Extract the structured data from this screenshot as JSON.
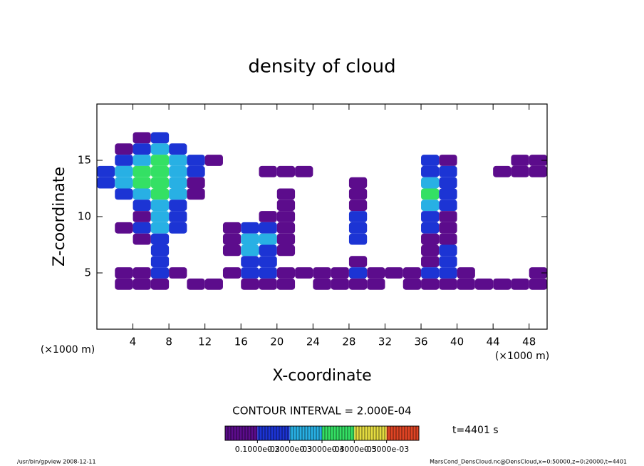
{
  "chart_data": {
    "type": "heatmap",
    "title": "density of cloud",
    "x_label": "X-coordinate",
    "y_label": "Z-coordinate",
    "x_unit_labels": [
      "(×1000 m)",
      "(×1000 m)"
    ],
    "contour_interval": "CONTOUR INTERVAL = 2.000E-04",
    "time_label": "t=4401 s",
    "footer_left": "/usr/bin/gpview   2008-12-11",
    "footer_right": "MarsCond_DensCloud.nc@DensCloud,x=0:50000,z=0:20000,t=4401",
    "xlim": [
      0,
      50
    ],
    "ylim": [
      0,
      20
    ],
    "xticks": [
      4,
      8,
      12,
      16,
      20,
      24,
      28,
      32,
      36,
      40,
      44,
      48
    ],
    "yticks": [
      5,
      10,
      15
    ],
    "x": [
      1,
      3,
      5,
      7,
      9,
      11,
      13,
      15,
      17,
      19,
      21,
      23,
      25,
      27,
      29,
      31,
      33,
      35,
      37,
      39,
      41,
      43,
      45,
      47,
      49
    ],
    "y": [
      17,
      16,
      15,
      14,
      13,
      12,
      11,
      10,
      9,
      8,
      7,
      6,
      5,
      4
    ],
    "values": [
      [
        0,
        0,
        5e-05,
        0.0001,
        0,
        0,
        0,
        0,
        0,
        0,
        0,
        0,
        0,
        0,
        0,
        0,
        0,
        0,
        0,
        0,
        0,
        0,
        0,
        0,
        0
      ],
      [
        0,
        5e-05,
        0.0001,
        0.0002,
        0.0001,
        0,
        0,
        0,
        0,
        0,
        0,
        0,
        0,
        0,
        0,
        0,
        0,
        0,
        0,
        0,
        0,
        0,
        0,
        0,
        0
      ],
      [
        0,
        0.0001,
        0.0002,
        0.0003,
        0.0002,
        0.0001,
        5e-05,
        0,
        0,
        0,
        0,
        0,
        0,
        0,
        0,
        0,
        0,
        0,
        0.0001,
        5e-05,
        0,
        0,
        0,
        5e-05,
        5e-05
      ],
      [
        0.0001,
        0.0002,
        0.0003,
        0.0003,
        0.0002,
        0.0001,
        0,
        0,
        0,
        5e-05,
        5e-05,
        5e-05,
        0,
        0,
        0,
        0,
        0,
        0,
        0.0001,
        0.0001,
        0,
        0,
        5e-05,
        5e-05,
        5e-05
      ],
      [
        0.0001,
        0.0002,
        0.0003,
        0.0003,
        0.0002,
        5e-05,
        0,
        0,
        0,
        0,
        0,
        0,
        0,
        0,
        5e-05,
        0,
        0,
        0,
        0.0002,
        0.0001,
        0,
        0,
        0,
        0,
        0
      ],
      [
        0,
        0.0001,
        0.0002,
        0.0003,
        0.0002,
        5e-05,
        0,
        0,
        0,
        0,
        5e-05,
        0,
        0,
        0,
        5e-05,
        0,
        0,
        0,
        0.0003,
        0.0001,
        0,
        0,
        0,
        0,
        0
      ],
      [
        0,
        0,
        0.0001,
        0.0002,
        0.0001,
        0,
        0,
        0,
        0,
        0,
        5e-05,
        0,
        0,
        0,
        5e-05,
        0,
        0,
        0,
        0.0002,
        0.0001,
        0,
        0,
        0,
        0,
        0
      ],
      [
        0,
        0,
        5e-05,
        0.0002,
        0.0001,
        0,
        0,
        0,
        0,
        5e-05,
        5e-05,
        0,
        0,
        0,
        0.0001,
        0,
        0,
        0,
        0.0001,
        5e-05,
        0,
        0,
        0,
        0,
        0
      ],
      [
        0,
        5e-05,
        0.0001,
        0.0002,
        0.0001,
        0,
        0,
        5e-05,
        0.0001,
        0.0001,
        5e-05,
        0,
        0,
        0,
        0.0001,
        0,
        0,
        0,
        0.0001,
        5e-05,
        0,
        0,
        0,
        0,
        0
      ],
      [
        0,
        0,
        5e-05,
        0.0001,
        0,
        0,
        0,
        5e-05,
        0.0002,
        0.0002,
        5e-05,
        0,
        0,
        0,
        0.0001,
        0,
        0,
        0,
        5e-05,
        5e-05,
        0,
        0,
        0,
        0,
        0
      ],
      [
        0,
        0,
        0,
        0.0001,
        0,
        0,
        0,
        5e-05,
        0.0002,
        0.0001,
        5e-05,
        0,
        0,
        0,
        0,
        0,
        0,
        0,
        5e-05,
        0.0001,
        0,
        0,
        0,
        0,
        0
      ],
      [
        0,
        0,
        0,
        0.0001,
        0,
        0,
        0,
        0,
        0.0001,
        0.0001,
        0,
        0,
        0,
        0,
        5e-05,
        0,
        0,
        0,
        5e-05,
        0.0001,
        0,
        0,
        0,
        0,
        0
      ],
      [
        0,
        5e-05,
        5e-05,
        0.0001,
        5e-05,
        0,
        0,
        5e-05,
        0.0001,
        0.0001,
        5e-05,
        5e-05,
        5e-05,
        5e-05,
        0.0001,
        5e-05,
        5e-05,
        5e-05,
        0.0001,
        0.0001,
        5e-05,
        0,
        0,
        0,
        5e-05
      ],
      [
        0,
        5e-05,
        5e-05,
        5e-05,
        0,
        5e-05,
        5e-05,
        0,
        5e-05,
        5e-05,
        5e-05,
        0,
        5e-05,
        5e-05,
        5e-05,
        5e-05,
        0,
        5e-05,
        5e-05,
        5e-05,
        5e-05,
        5e-05,
        5e-05,
        5e-05,
        5e-05
      ]
    ],
    "clim": [
      0,
      0.0006
    ],
    "colormap": [
      "#5c0c8c",
      "#1c34d4",
      "#28b0e4",
      "#34e064",
      "#e4dc40",
      "#e04424"
    ],
    "cticks": [
      {
        "value": 0.0001,
        "label": "0.1000e-03"
      },
      {
        "value": 0.0002,
        "label": "0.2000e-03"
      },
      {
        "value": 0.0003,
        "label": "0.3000e-03"
      },
      {
        "value": 0.0004,
        "label": "0.4000e-03"
      },
      {
        "value": 0.0005,
        "label": "0.5000e-03"
      }
    ]
  }
}
